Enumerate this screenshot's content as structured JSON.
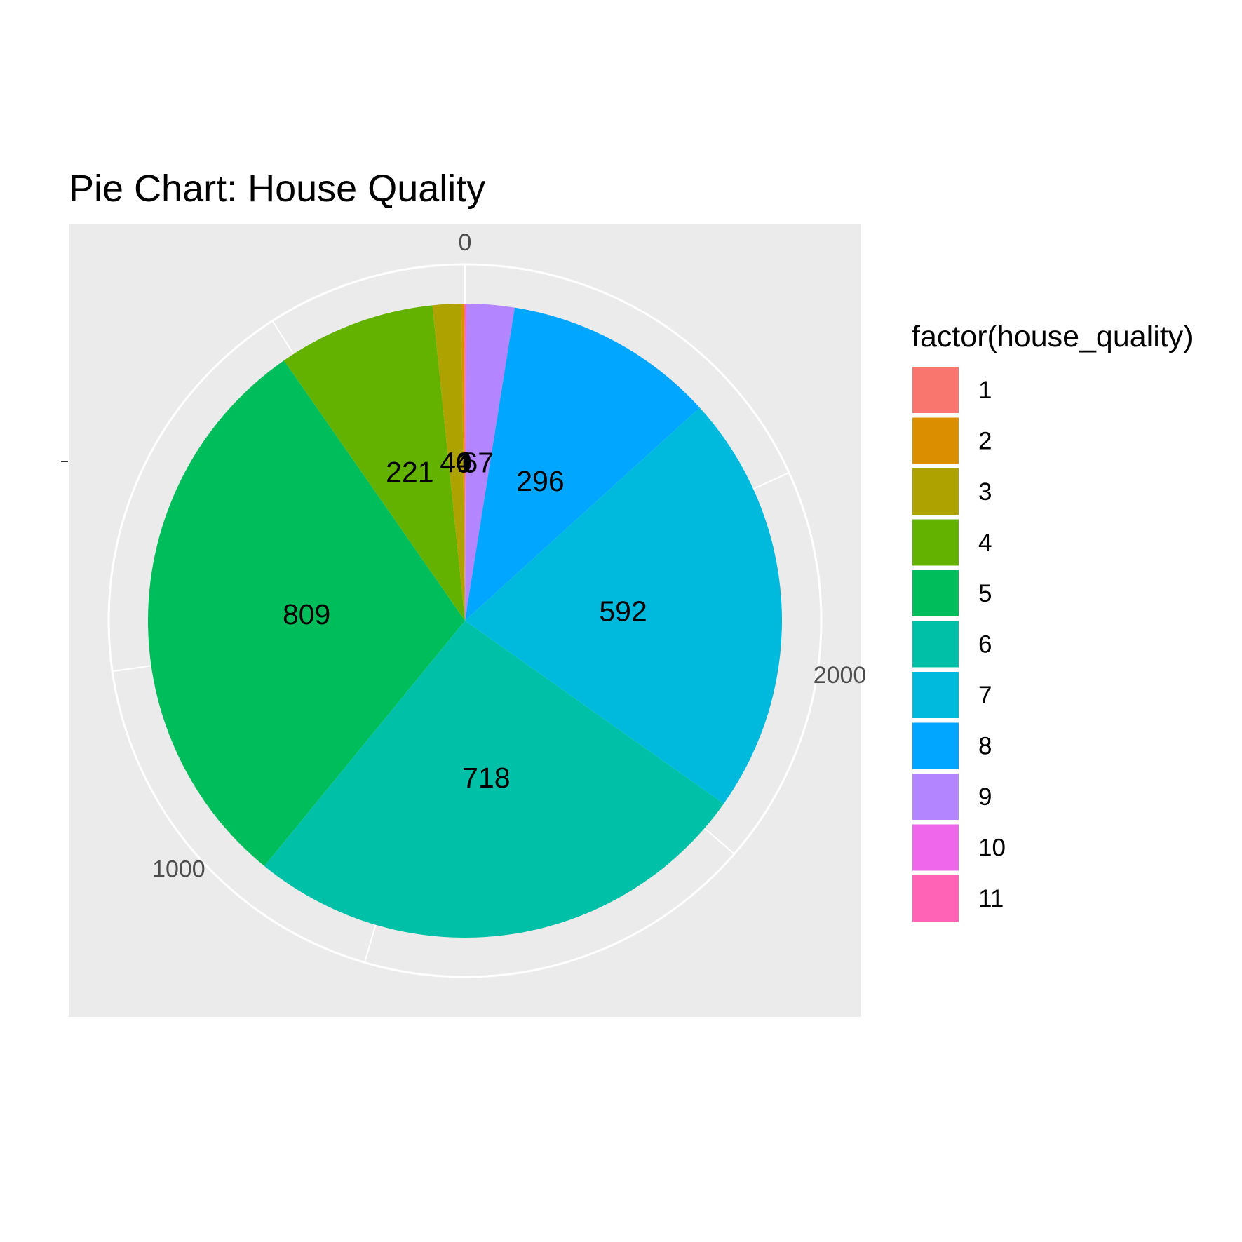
{
  "chart_data": {
    "type": "pie",
    "title": "Pie Chart: House Quality",
    "legend_title": "factor(house_quality)",
    "legend_position": "right",
    "categories": [
      "1",
      "2",
      "3",
      "4",
      "5",
      "6",
      "7",
      "8",
      "9",
      "10",
      "11"
    ],
    "values": [
      1,
      4,
      40,
      221,
      809,
      718,
      592,
      296,
      67,
      1,
      1
    ],
    "data_labels": [
      "1",
      "4",
      "40",
      "221",
      "809",
      "718",
      "592",
      "296",
      "67",
      "1",
      "1"
    ],
    "colors": [
      "#F8766D",
      "#DB8E00",
      "#AEA200",
      "#64B200",
      "#00BD5C",
      "#00C1A7",
      "#00BADE",
      "#00A6FF",
      "#B385FF",
      "#EF67EB",
      "#FF63B6"
    ],
    "theta_axis": {
      "ticks": [
        0,
        1000,
        2000
      ],
      "tick_labels": [
        "0",
        "1000",
        "2000"
      ],
      "total": 2750
    },
    "y_axis_tick_label": "-",
    "panel_background": "#EBEBEB",
    "grid": true
  }
}
